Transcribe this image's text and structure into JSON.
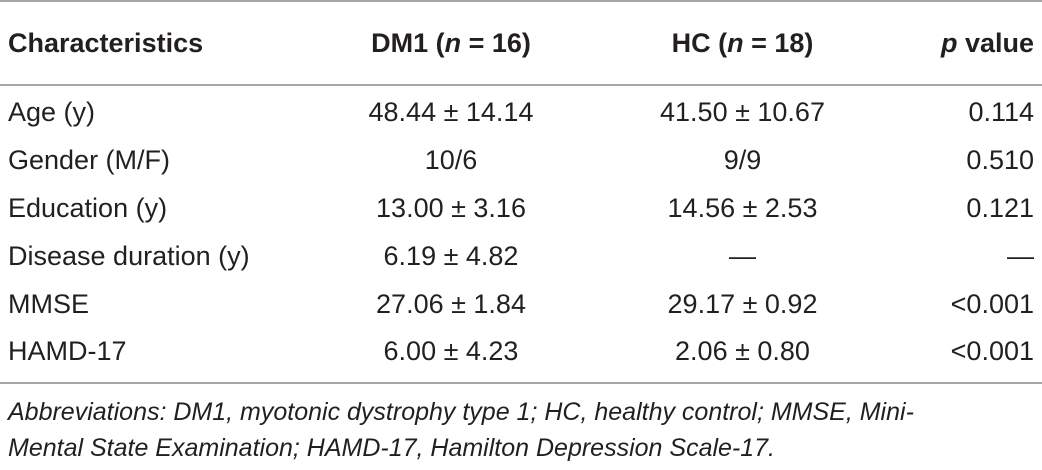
{
  "table": {
    "headers": {
      "characteristics": "Characteristics",
      "dm1_prefix": "DM1 (",
      "dm1_n": "n",
      "dm1_suffix": " = 16)",
      "hc_prefix": "HC (",
      "hc_n": "n",
      "hc_suffix": " = 18)",
      "p_italic": "p",
      "p_suffix": " value"
    },
    "rows": [
      {
        "label": "Age (y)",
        "dm1": "48.44 ± 14.14",
        "hc": "41.50 ± 10.67",
        "p": "0.114"
      },
      {
        "label": "Gender (M/F)",
        "dm1": "10/6",
        "hc": "9/9",
        "p": "0.510"
      },
      {
        "label": "Education (y)",
        "dm1": "13.00 ± 3.16",
        "hc": "14.56 ± 2.53",
        "p": "0.121"
      },
      {
        "label": "Disease duration (y)",
        "dm1": "6.19 ± 4.82",
        "hc": "—",
        "p": "—"
      },
      {
        "label": "MMSE",
        "dm1": "27.06 ± 1.84",
        "hc": "29.17 ± 0.92",
        "p": "<0.001"
      },
      {
        "label": "HAMD-17",
        "dm1": "6.00 ± 4.23",
        "hc": "2.06 ± 0.80",
        "p": "<0.001"
      }
    ],
    "footnote_line1": "Abbreviations: DM1, myotonic dystrophy type 1; HC, healthy control; MMSE, Mini-",
    "footnote_line2": "Mental State Examination; HAMD-17, Hamilton Depression Scale-17."
  }
}
